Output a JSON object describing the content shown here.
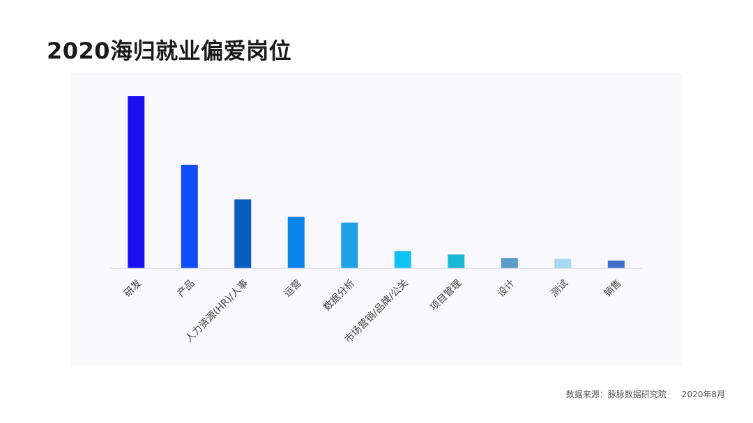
{
  "title": "2020海归就业偏爱岗位",
  "footer": {
    "source": "数据来源：脉脉数据研究院",
    "date": "2020年8月"
  },
  "chart_data": {
    "type": "bar",
    "title": "2020海归就业偏爱岗位",
    "categories": [
      "研发",
      "产品",
      "人力资源(HR)/人事",
      "运营",
      "数据分析",
      "市场营销/品牌/公关",
      "项目管理",
      "设计",
      "测试",
      "销售"
    ],
    "values": [
      100,
      60,
      40,
      30,
      26.5,
      10,
      8,
      6,
      5.5,
      4.5
    ],
    "colors": [
      "#1a0ff0",
      "#0f4cf7",
      "#0a5ec2",
      "#0a84e8",
      "#20a3e6",
      "#0fc2ef",
      "#1ab8d6",
      "#5a9bc8",
      "#a6d8f4",
      "#3f6ec7"
    ],
    "xlabel": "",
    "ylabel": "",
    "ylim": [
      0,
      100
    ],
    "grid": false,
    "legend": "none"
  }
}
